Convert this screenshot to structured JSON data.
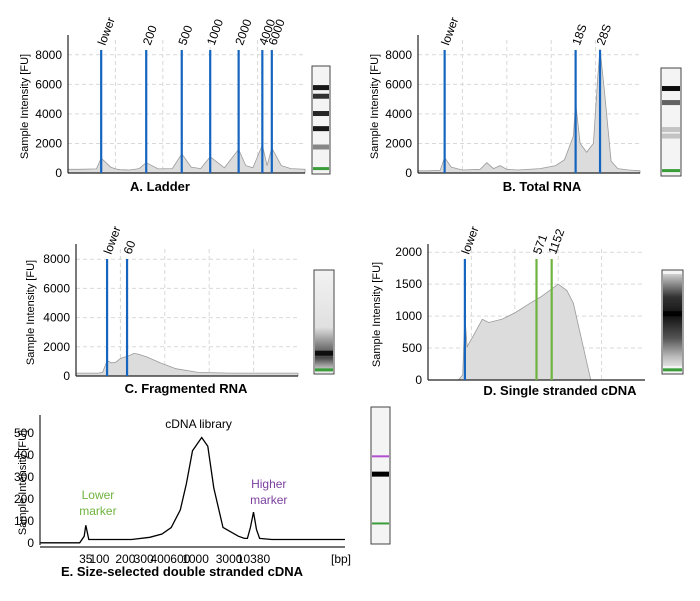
{
  "colors": {
    "marker_blue": "#1565c0",
    "marker_green": "#6fb33f",
    "lower_marker_text": "#6fb33f",
    "higher_marker_text": "#7b3fa0",
    "higher_gel_band": "#b04fd0",
    "trace_fill": "#dcdcdc"
  },
  "chart_data": [
    {
      "id": "A",
      "type": "area",
      "title": "A. Ladder",
      "ylabel": "Sample Intensity [FU]",
      "yticks": [
        0,
        2000,
        4000,
        6000,
        8000
      ],
      "ylim": [
        0,
        9000
      ],
      "xlim": [
        0,
        100
      ],
      "series": [
        {
          "name": "trace",
          "x": [
            0,
            5,
            12,
            14,
            18,
            20,
            22,
            26,
            30,
            33,
            38,
            44,
            48,
            52,
            56,
            60,
            66,
            72,
            75,
            78,
            82,
            84,
            86,
            90,
            94,
            100
          ],
          "y": [
            250,
            250,
            280,
            1000,
            400,
            280,
            220,
            200,
            300,
            700,
            280,
            300,
            1300,
            400,
            300,
            1100,
            350,
            1600,
            500,
            350,
            1900,
            500,
            1700,
            500,
            300,
            260
          ]
        }
      ],
      "peaks": [
        {
          "label": "lower",
          "x": 14
        },
        {
          "label": "200",
          "x": 33
        },
        {
          "label": "500",
          "x": 48
        },
        {
          "label": "1000",
          "x": 60
        },
        {
          "label": "2000",
          "x": 72
        },
        {
          "label": "4000",
          "x": 82
        },
        {
          "label": "6000",
          "x": 86
        }
      ],
      "gel_bands": [
        {
          "pos": 0.2,
          "strength": 0.9,
          "color": ""
        },
        {
          "pos": 0.28,
          "strength": 0.8,
          "color": ""
        },
        {
          "pos": 0.44,
          "strength": 0.85,
          "color": ""
        },
        {
          "pos": 0.58,
          "strength": 0.9,
          "color": ""
        },
        {
          "pos": 0.75,
          "strength": 0.45,
          "color": ""
        },
        {
          "pos": 0.95,
          "strength": 1,
          "color": "#3a9d3a"
        }
      ]
    },
    {
      "id": "B",
      "type": "area",
      "title": "B. Total RNA",
      "ylabel": "Sample Intensity [FU]",
      "yticks": [
        0,
        2000,
        4000,
        6000,
        8000
      ],
      "ylim": [
        0,
        9000
      ],
      "xlim": [
        0,
        100
      ],
      "series": [
        {
          "name": "trace",
          "x": [
            0,
            5,
            10,
            12,
            15,
            20,
            28,
            31,
            34,
            37,
            40,
            45,
            55,
            62,
            66,
            70,
            71,
            73,
            76,
            79,
            81,
            82,
            84,
            87,
            90,
            95,
            100
          ],
          "y": [
            150,
            150,
            180,
            1050,
            400,
            200,
            250,
            700,
            300,
            500,
            250,
            200,
            300,
            500,
            900,
            2500,
            4800,
            2000,
            1400,
            2000,
            6500,
            8400,
            5500,
            800,
            300,
            200,
            150
          ]
        }
      ],
      "peaks": [
        {
          "label": "lower",
          "x": 12
        },
        {
          "label": "18S",
          "x": 71
        },
        {
          "label": "28S",
          "x": 82
        }
      ],
      "gel_bands": [
        {
          "pos": 0.19,
          "strength": 0.95,
          "color": ""
        },
        {
          "pos": 0.32,
          "strength": 0.6,
          "color": ""
        },
        {
          "pos": 0.57,
          "strength": 0.2,
          "color": ""
        },
        {
          "pos": 0.63,
          "strength": 0.2,
          "color": ""
        },
        {
          "pos": 0.95,
          "strength": 1,
          "color": "#3a9d3a"
        }
      ]
    },
    {
      "id": "C",
      "type": "area",
      "title": "C. Fragmented RNA",
      "ylabel": "Sample Intensity [FU]",
      "yticks": [
        0,
        2000,
        4000,
        6000,
        8000
      ],
      "ylim": [
        0,
        8700
      ],
      "xlim": [
        0,
        100
      ],
      "series": [
        {
          "name": "trace",
          "x": [
            0,
            10,
            12,
            14,
            16,
            18,
            20,
            24,
            26,
            28,
            32,
            38,
            45,
            55,
            70,
            85,
            100
          ],
          "y": [
            200,
            200,
            250,
            1050,
            900,
            950,
            1200,
            1400,
            1550,
            1500,
            1300,
            900,
            500,
            250,
            200,
            200,
            200
          ]
        }
      ],
      "peaks": [
        {
          "label": "lower",
          "x": 14
        },
        {
          "label": "60",
          "x": 23
        }
      ],
      "gel_bands": [
        {
          "pos": 0.8,
          "strength": 0.85,
          "color": ""
        },
        {
          "pos": 0.96,
          "strength": 1,
          "color": "#3a9d3a"
        }
      ]
    },
    {
      "id": "D",
      "type": "area",
      "title": "D. Single stranded cDNA",
      "ylabel": "Sample Intensity [FU]",
      "yticks": [
        0,
        500,
        1000,
        1500,
        2000
      ],
      "ylim": [
        0,
        2050
      ],
      "xlim": [
        0,
        100
      ],
      "series": [
        {
          "name": "trace",
          "x": [
            0,
            14,
            16,
            17,
            18,
            19,
            21,
            25,
            28,
            34,
            40,
            47,
            52,
            58,
            60,
            64,
            67,
            69,
            71,
            73,
            75,
            80
          ],
          "y": [
            0,
            0,
            80,
            1000,
            520,
            580,
            700,
            950,
            900,
            950,
            1050,
            1200,
            1300,
            1450,
            1500,
            1400,
            1200,
            900,
            600,
            300,
            0,
            0
          ]
        }
      ],
      "peaks": [
        {
          "label": "lower",
          "x": 17,
          "color": "blue"
        },
        {
          "label": "571",
          "x": 50,
          "color": "green"
        },
        {
          "label": "1152",
          "x": 57,
          "color": "green"
        }
      ],
      "gel_bands": [
        {
          "pos": 0.42,
          "strength": 0.9,
          "color": ""
        },
        {
          "pos": 0.96,
          "strength": 1,
          "color": "#3a9d3a"
        }
      ]
    },
    {
      "id": "E",
      "type": "line",
      "title": "E. Size-selected double stranded cDNA",
      "ylabel": "Sample Intensity [FU]",
      "xunit": "[bp]",
      "yticks": [
        0,
        100,
        200,
        300,
        400,
        500
      ],
      "ylim": [
        -10,
        560
      ],
      "xlim": [
        0,
        100
      ],
      "xticks": [
        {
          "label": "35",
          "x": 15
        },
        {
          "label": "100",
          "x": 19.5
        },
        {
          "label": "200",
          "x": 28
        },
        {
          "label": "300",
          "x": 34
        },
        {
          "label": "400",
          "x": 39.5
        },
        {
          "label": "600",
          "x": 46
        },
        {
          "label": "1000",
          "x": 51
        },
        {
          "label": "3000",
          "x": 62
        },
        {
          "label": "10380",
          "x": 70
        }
      ],
      "series": [
        {
          "name": "trace",
          "x": [
            0,
            13,
            14.5,
            15,
            16,
            30,
            36,
            40,
            43,
            46,
            48,
            50,
            53,
            55,
            57,
            60,
            65,
            67,
            68,
            69,
            70,
            71,
            72,
            76,
            100
          ],
          "y": [
            0,
            0,
            30,
            80,
            15,
            15,
            25,
            40,
            70,
            150,
            270,
            420,
            480,
            440,
            250,
            70,
            30,
            20,
            20,
            70,
            140,
            60,
            20,
            15,
            15
          ]
        }
      ],
      "annotations": {
        "lower_marker": "Lower\nmarker",
        "higher_marker": "Higher\nmarker",
        "peak_label": "cDNA library"
      },
      "gel_bands": [
        {
          "pos": 0.36,
          "strength": 0.3,
          "color": "#b04fd0"
        },
        {
          "pos": 0.49,
          "strength": 1,
          "color": ""
        },
        {
          "pos": 0.85,
          "strength": 1,
          "color": "#3a9d3a"
        }
      ]
    }
  ]
}
